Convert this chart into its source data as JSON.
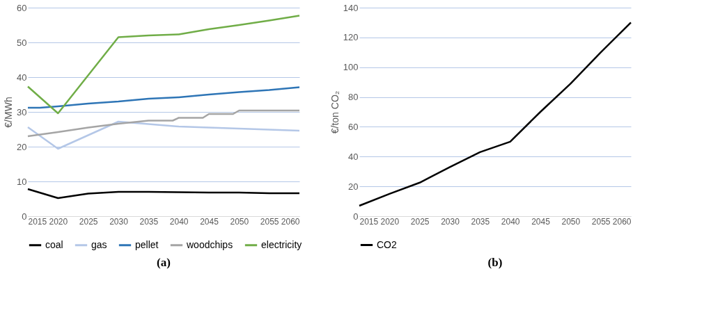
{
  "chart_data": [
    {
      "type": "line",
      "title": "(a)",
      "ylabel": "€/MWh",
      "xlim": [
        2015,
        2060
      ],
      "xticks": [
        2015,
        2020,
        2025,
        2030,
        2035,
        2040,
        2045,
        2050,
        2055,
        2060
      ],
      "ylim": [
        0,
        60
      ],
      "yticks": [
        0,
        10,
        20,
        30,
        40,
        50,
        60
      ],
      "grid": "y",
      "legend": "bottom",
      "marker": "none",
      "line_style": "solid",
      "series": [
        {
          "name": "coal",
          "color": "#000000",
          "x": [
            2015,
            2020,
            2025,
            2030,
            2035,
            2040,
            2045,
            2050,
            2055,
            2060
          ],
          "values": [
            7.8,
            5.2,
            6.5,
            7.0,
            7.0,
            6.9,
            6.8,
            6.8,
            6.6,
            6.6
          ]
        },
        {
          "name": "gas",
          "color": "#b4c7e7",
          "x": [
            2015,
            2020,
            2025,
            2030,
            2035,
            2040,
            2045,
            2050,
            2055,
            2060
          ],
          "values": [
            25.6,
            19.4,
            23.3,
            27.2,
            26.5,
            25.8,
            25.5,
            25.2,
            24.9,
            24.6
          ]
        },
        {
          "name": "pellet",
          "color": "#2e75b6",
          "x": [
            2015,
            2017,
            2020,
            2025,
            2030,
            2035,
            2040,
            2045,
            2050,
            2055,
            2060
          ],
          "values": [
            31.2,
            31.2,
            31.6,
            32.4,
            33.0,
            33.8,
            34.2,
            35.0,
            35.7,
            36.3,
            37.1
          ]
        },
        {
          "name": "woodchips",
          "color": "#a5a5a5",
          "x": [
            2015,
            2020,
            2025,
            2030,
            2035,
            2039,
            2040,
            2044,
            2045,
            2049,
            2050,
            2060
          ],
          "values": [
            23.0,
            24.2,
            25.5,
            26.6,
            27.5,
            27.5,
            28.3,
            28.3,
            29.4,
            29.4,
            30.4,
            30.4
          ]
        },
        {
          "name": "electricity",
          "color": "#70ad47",
          "x": [
            2015,
            2020,
            2030,
            2035,
            2040,
            2045,
            2050,
            2055,
            2060
          ],
          "values": [
            37.3,
            29.6,
            51.5,
            52.0,
            52.3,
            53.8,
            55.0,
            56.3,
            57.7
          ]
        }
      ]
    },
    {
      "type": "line",
      "title": "(b)",
      "ylabel": "€/ton CO₂",
      "xlim": [
        2015,
        2060
      ],
      "xticks": [
        2015,
        2020,
        2025,
        2030,
        2035,
        2040,
        2045,
        2050,
        2055,
        2060
      ],
      "ylim": [
        0,
        140
      ],
      "yticks": [
        0,
        20,
        40,
        60,
        80,
        100,
        120,
        140
      ],
      "grid": "y",
      "legend": "bottom",
      "marker": "none",
      "line_style": "solid",
      "series": [
        {
          "name": "CO2",
          "color": "#000000",
          "x": [
            2015,
            2020,
            2025,
            2030,
            2035,
            2040,
            2045,
            2050,
            2055,
            2060
          ],
          "values": [
            7,
            15,
            22.5,
            33,
            43,
            50,
            70,
            89,
            110,
            130
          ]
        }
      ]
    }
  ]
}
